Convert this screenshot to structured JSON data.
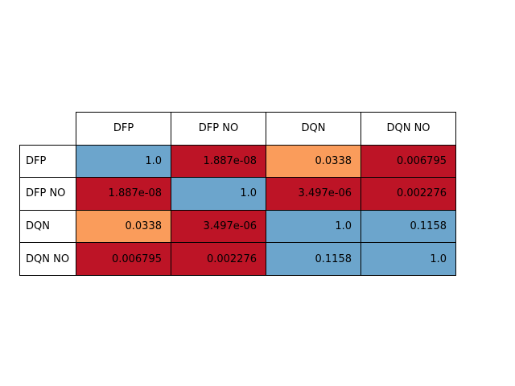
{
  "chart_data": {
    "type": "table",
    "columns": [
      "DFP",
      "DFP NO",
      "DQN",
      "DQN NO"
    ],
    "rows": [
      "DFP",
      "DFP NO",
      "DQN",
      "DQN NO"
    ],
    "cells": [
      [
        "1.0",
        "1.887e-08",
        "0.0338",
        "0.006795"
      ],
      [
        "1.887e-08",
        "1.0",
        "3.497e-06",
        "0.002276"
      ],
      [
        "0.0338",
        "3.497e-06",
        "1.0",
        "0.1158"
      ],
      [
        "0.006795",
        "0.002276",
        "0.1158",
        "1.0"
      ]
    ],
    "cell_colors": [
      [
        "#6ca5cc",
        "#bd1426",
        "#fa9c5b",
        "#bd1426"
      ],
      [
        "#bd1426",
        "#6ca5cc",
        "#bd1426",
        "#bd1426"
      ],
      [
        "#fa9c5b",
        "#bd1426",
        "#6ca5cc",
        "#6ca5cc"
      ],
      [
        "#bd1426",
        "#bd1426",
        "#6ca5cc",
        "#6ca5cc"
      ]
    ]
  }
}
